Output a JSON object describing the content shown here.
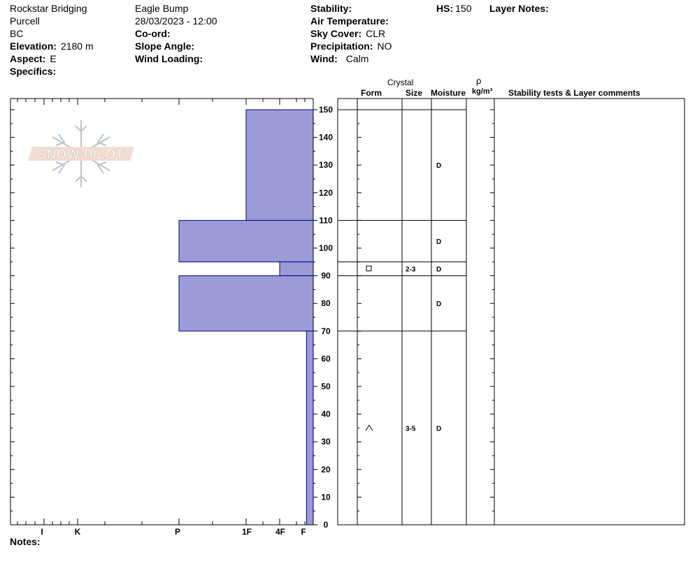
{
  "header": {
    "location": "Rockstar Bridging",
    "range": "Purcell",
    "region": "BC",
    "elevation_label": "Elevation:",
    "elevation_value": "2180 m",
    "aspect_label": "Aspect:",
    "aspect_value": "E",
    "specifics_label": "Specifics:",
    "site": "Eagle Bump",
    "datetime": "28/03/2023 - 12:00",
    "coord_label": "Co-ord:",
    "slope_label": "Slope Angle:",
    "wind_loading_label": "Wind Loading:",
    "stability_label": "Stability:",
    "air_temp_label": "Air Temperature:",
    "sky_label": "Sky Cover:",
    "sky_value": "CLR",
    "precip_label": "Precipitation:",
    "precip_value": "NO",
    "wind_label": "Wind:",
    "wind_value": "Calm",
    "hs_label": "HS:",
    "hs_value": "150",
    "layer_notes_label": "Layer Notes:"
  },
  "watermark": {
    "text": "SNOW PILOT"
  },
  "columns": {
    "crystal": "Crystal",
    "form": "Form",
    "size": "Size",
    "moisture": "Moisture",
    "rho": "ρ",
    "density_unit": "kg/m³",
    "comments": "Stability tests & Layer comments"
  },
  "notes_label": "Notes:",
  "chart_data": {
    "type": "bar",
    "orientation": "horizontal",
    "y_axis": {
      "label": "",
      "range": [
        0,
        150
      ],
      "ticks": [
        0,
        10,
        20,
        30,
        40,
        50,
        60,
        70,
        80,
        90,
        100,
        110,
        120,
        130,
        140,
        150
      ]
    },
    "x_axis": {
      "categories": [
        "I",
        "K",
        "P",
        "1F",
        "4F",
        "F"
      ],
      "values": [
        0,
        1,
        2,
        3,
        4,
        5
      ]
    },
    "hardness_layers": [
      {
        "bottom": 110,
        "top": 150,
        "hardness": "1F",
        "value": 3
      },
      {
        "bottom": 95,
        "top": 110,
        "hardness": "P",
        "value": 2
      },
      {
        "bottom": 90,
        "top": 95,
        "hardness": "4F",
        "value": 4
      },
      {
        "bottom": 70,
        "top": 90,
        "hardness": "P",
        "value": 2
      },
      {
        "bottom": 0,
        "top": 70,
        "hardness": "F-",
        "value": 4.8
      }
    ],
    "layer_boundaries": [
      150,
      110,
      95,
      90,
      70
    ],
    "layer_attributes": [
      {
        "height": 130,
        "form": "",
        "size": "",
        "moisture": "D"
      },
      {
        "height": 102.5,
        "form": "",
        "size": "",
        "moisture": "D"
      },
      {
        "height": 92.5,
        "form": "□",
        "size": "2-3",
        "moisture": "D"
      },
      {
        "height": 80,
        "form": "",
        "size": "",
        "moisture": "D"
      },
      {
        "height": 35,
        "form": "^",
        "size": "3-5",
        "moisture": "D"
      }
    ],
    "bar_color": "#9b9bd7",
    "bar_edge_color": "#00008b"
  }
}
